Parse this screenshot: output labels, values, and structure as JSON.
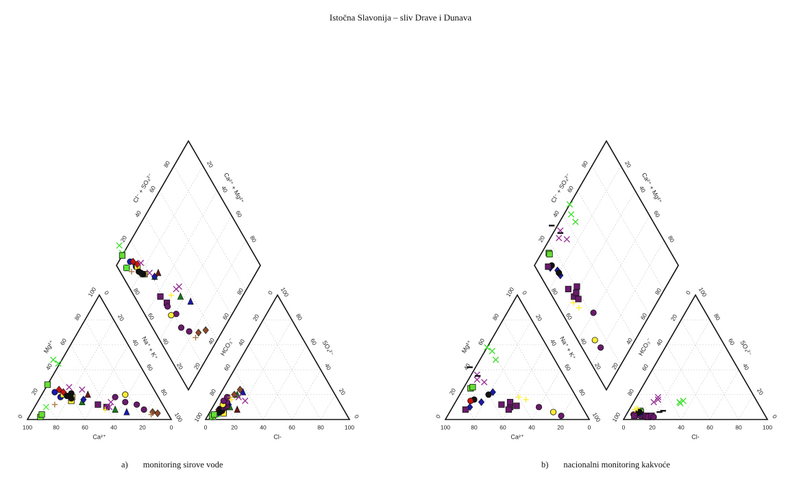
{
  "page": {
    "title": "Istočna Slavonija – sliv Drave i Dunava"
  },
  "chart_data": [
    {
      "type": "scatter",
      "subtype": "piper",
      "caption_label": "a)",
      "caption": "monitoring sirove vode",
      "axes": {
        "cation_x": "Ca²⁺",
        "cation_left": "Mg²⁺",
        "cation_right": "Na⁺ + K⁺",
        "anion_x": "Cl-",
        "anion_left": "HCO₃⁻",
        "anion_right": "SO₄²⁻",
        "diamond_left": "Cl⁻ + SO₄²⁻",
        "diamond_right": "Ca²⁺ + Mg²⁺"
      },
      "ticks": [
        "20",
        "40",
        "60",
        "80"
      ],
      "ticks_with_ends": [
        "0",
        "20",
        "40",
        "60",
        "80",
        "100"
      ],
      "points": [
        {
          "marker": "square",
          "color": "#66dd33",
          "ca": 90,
          "mg": 2,
          "cl": 4,
          "so4": 2
        },
        {
          "marker": "square",
          "color": "#66dd33",
          "ca": 88,
          "mg": 4,
          "cl": 3,
          "so4": 3
        },
        {
          "marker": "x",
          "color": "#44dd33",
          "ca": 56,
          "mg": 45,
          "cl": 5,
          "so4": 4
        },
        {
          "marker": "x",
          "color": "#44dd33",
          "ca": 58,
          "mg": 48,
          "cl": 6,
          "so4": 4
        },
        {
          "marker": "x",
          "color": "#55ee44",
          "ca": 82,
          "mg": 10,
          "cl": 4,
          "so4": 2
        },
        {
          "marker": "circle",
          "color": "#1a1aaa",
          "ca": 70,
          "mg": 22,
          "cl": 6,
          "so4": 5
        },
        {
          "marker": "circle",
          "color": "#1a1aaa",
          "ca": 68,
          "mg": 18,
          "cl": 7,
          "so4": 6
        },
        {
          "marker": "square",
          "color": "#ffee33",
          "ca": 65,
          "mg": 20,
          "cl": 8,
          "so4": 6
        },
        {
          "marker": "square",
          "color": "#ffee33",
          "ca": 62,
          "mg": 15,
          "cl": 9,
          "so4": 7
        },
        {
          "marker": "square",
          "color": "#ffee33",
          "ca": 60,
          "mg": 18,
          "cl": 10,
          "so4": 5
        },
        {
          "marker": "diamond",
          "color": "#cc1111",
          "ca": 66,
          "mg": 24,
          "cl": 5,
          "so4": 8
        },
        {
          "marker": "diamond",
          "color": "#cc1111",
          "ca": 64,
          "mg": 22,
          "cl": 6,
          "so4": 9
        },
        {
          "marker": "circle",
          "color": "#111111",
          "ca": 63,
          "mg": 19,
          "cl": 7,
          "so4": 6
        },
        {
          "marker": "circle",
          "color": "#111111",
          "ca": 61,
          "mg": 17,
          "cl": 8,
          "so4": 7
        },
        {
          "marker": "circle",
          "color": "#111111",
          "ca": 59,
          "mg": 21,
          "cl": 6,
          "so4": 8
        },
        {
          "marker": "triangle",
          "color": "#1a7a1a",
          "ca": 55,
          "mg": 14,
          "cl": 12,
          "so4": 10
        },
        {
          "marker": "diamond",
          "color": "#1a1aaa",
          "ca": 53,
          "mg": 16,
          "cl": 10,
          "so4": 12
        },
        {
          "marker": "x",
          "color": "#993399",
          "ca": 58,
          "mg": 26,
          "cl": 8,
          "so4": 10
        },
        {
          "marker": "x",
          "color": "#993399",
          "ca": 50,
          "mg": 24,
          "cl": 9,
          "so4": 11
        },
        {
          "marker": "square",
          "color": "#6a1a6a",
          "ca": 45,
          "mg": 12,
          "cl": 8,
          "so4": 10
        },
        {
          "marker": "square",
          "color": "#6a1a6a",
          "ca": 40,
          "mg": 10,
          "cl": 9,
          "so4": 11
        },
        {
          "marker": "circle",
          "color": "#6a1a6a",
          "ca": 30,
          "mg": 18,
          "cl": 7,
          "so4": 12
        },
        {
          "marker": "circle",
          "color": "#6a1a6a",
          "ca": 25,
          "mg": 14,
          "cl": 8,
          "so4": 14
        },
        {
          "marker": "circle",
          "color": "#ffee33",
          "ca": 22,
          "mg": 20,
          "cl": 6,
          "so4": 12
        },
        {
          "marker": "circle",
          "color": "#6a1a6a",
          "ca": 18,
          "mg": 12,
          "cl": 5,
          "so4": 15
        },
        {
          "marker": "circle",
          "color": "#6a1a6a",
          "ca": 15,
          "mg": 8,
          "cl": 6,
          "so4": 18
        },
        {
          "marker": "triangle",
          "color": "#1a7a1a",
          "ca": 35,
          "mg": 8,
          "cl": 12,
          "so4": 20
        },
        {
          "marker": "triangle",
          "color": "#1a1aaa",
          "ca": 28,
          "mg": 6,
          "cl": 15,
          "so4": 22
        },
        {
          "marker": "diamond",
          "color": "#8a4a2a",
          "ca": 10,
          "mg": 6,
          "cl": 10,
          "so4": 20
        },
        {
          "marker": "diamond",
          "color": "#8a4a2a",
          "ca": 7,
          "mg": 5,
          "cl": 12,
          "so4": 24
        },
        {
          "marker": "plus",
          "color": "#aa7744",
          "ca": 12,
          "mg": 4,
          "cl": 8,
          "so4": 18
        },
        {
          "marker": "plus",
          "color": "#aa7744",
          "ca": 75,
          "mg": 12,
          "cl": 5,
          "so4": 3
        },
        {
          "marker": "plus",
          "color": "#ffee33",
          "ca": 42,
          "mg": 8,
          "cl": 10,
          "so4": 16
        },
        {
          "marker": "x",
          "color": "#993399",
          "ca": 35,
          "mg": 14,
          "cl": 14,
          "so4": 18
        },
        {
          "marker": "x",
          "color": "#993399",
          "ca": 38,
          "mg": 10,
          "cl": 20,
          "so4": 15
        },
        {
          "marker": "triangle",
          "color": "#6a1a1a",
          "ca": 48,
          "mg": 20,
          "cl": 18,
          "so4": 8
        },
        {
          "marker": "square",
          "color": "#66dd33",
          "ca": 72,
          "mg": 28,
          "cl": 4,
          "so4": 4
        }
      ]
    },
    {
      "type": "scatter",
      "subtype": "piper",
      "caption_label": "b)",
      "caption": "nacionalni monitoring kakvoće",
      "axes": {
        "cation_x": "Ca²⁺",
        "cation_left": "Mg²⁺",
        "cation_right": "Na⁺ + K⁺",
        "anion_x": "Cl-",
        "anion_left": "HCO₃⁻",
        "anion_right": "SO₄²⁻",
        "diamond_left": "Cl⁻ + SO₄²⁻",
        "diamond_right": "Ca²⁺ + Mg²⁺"
      },
      "ticks": [
        "20",
        "40",
        "60",
        "80"
      ],
      "ticks_with_ends": [
        "0",
        "20",
        "40",
        "60",
        "80",
        "100"
      ],
      "points": [
        {
          "marker": "x",
          "color": "#44dd33",
          "ca": 40,
          "mg": 55,
          "cl": 32,
          "so4": 14
        },
        {
          "marker": "x",
          "color": "#44dd33",
          "ca": 42,
          "mg": 58,
          "cl": 34,
          "so4": 15
        },
        {
          "marker": "x",
          "color": "#44dd33",
          "ca": 41,
          "mg": 48,
          "cl": 33,
          "so4": 13
        },
        {
          "marker": "square",
          "color": "#66dd33",
          "ca": 70,
          "mg": 25,
          "cl": 8,
          "so4": 7
        },
        {
          "marker": "square",
          "color": "#66dd33",
          "ca": 68,
          "mg": 26,
          "cl": 9,
          "so4": 6
        },
        {
          "marker": "x",
          "color": "#993399",
          "ca": 62,
          "mg": 32,
          "cl": 14,
          "so4": 14
        },
        {
          "marker": "x",
          "color": "#993399",
          "ca": 60,
          "mg": 36,
          "cl": 16,
          "so4": 16
        },
        {
          "marker": "x",
          "color": "#993399",
          "ca": 58,
          "mg": 30,
          "cl": 15,
          "so4": 18
        },
        {
          "marker": "square",
          "color": "#6a1a6a",
          "ca": 55,
          "mg": 12,
          "cl": 10,
          "so4": 4
        },
        {
          "marker": "square",
          "color": "#6a1a6a",
          "ca": 50,
          "mg": 10,
          "cl": 12,
          "so4": 3
        },
        {
          "marker": "square",
          "color": "#6a1a6a",
          "ca": 45,
          "mg": 11,
          "cl": 14,
          "so4": 3
        },
        {
          "marker": "square",
          "color": "#6a1a6a",
          "ca": 52,
          "mg": 8,
          "cl": 16,
          "so4": 2
        },
        {
          "marker": "square",
          "color": "#6a1a6a",
          "ca": 48,
          "mg": 14,
          "cl": 18,
          "so4": 3
        },
        {
          "marker": "circle",
          "color": "#6a1a6a",
          "ca": 30,
          "mg": 10,
          "cl": 20,
          "so4": 2
        },
        {
          "marker": "circle",
          "color": "#ffee33",
          "ca": 22,
          "mg": 6,
          "cl": 8,
          "so4": 4
        },
        {
          "marker": "circle",
          "color": "#6a1a6a",
          "ca": 18,
          "mg": 3,
          "cl": 10,
          "so4": 3
        },
        {
          "marker": "diamond",
          "color": "#1a1aaa",
          "ca": 78,
          "mg": 10,
          "cl": 6,
          "so4": 4
        },
        {
          "marker": "diamond",
          "color": "#1a1aaa",
          "ca": 68,
          "mg": 14,
          "cl": 8,
          "so4": 6
        },
        {
          "marker": "diamond",
          "color": "#1a1aaa",
          "ca": 56,
          "mg": 22,
          "cl": 9,
          "so4": 5
        },
        {
          "marker": "circle",
          "color": "#111111",
          "ca": 72,
          "mg": 16,
          "cl": 7,
          "so4": 5
        },
        {
          "marker": "circle",
          "color": "#111111",
          "ca": 60,
          "mg": 20,
          "cl": 8,
          "so4": 6
        },
        {
          "marker": "circle",
          "color": "#cc1111",
          "ca": 75,
          "mg": 15,
          "cl": 5,
          "so4": 4
        },
        {
          "marker": "plus",
          "color": "#ffee33",
          "ca": 40,
          "mg": 18,
          "cl": 4,
          "so4": 8
        },
        {
          "marker": "plus",
          "color": "#ffee33",
          "ca": 36,
          "mg": 16,
          "cl": 5,
          "so4": 9
        },
        {
          "marker": "dash",
          "color": "#111111",
          "ca": 62,
          "mg": 42,
          "cl": 22,
          "so4": 6
        },
        {
          "marker": "dash",
          "color": "#111111",
          "ca": 60,
          "mg": 35,
          "cl": 24,
          "so4": 7
        },
        {
          "marker": "square",
          "color": "#6a1a6a",
          "ca": 82,
          "mg": 8,
          "cl": 6,
          "so4": 3
        }
      ]
    }
  ]
}
